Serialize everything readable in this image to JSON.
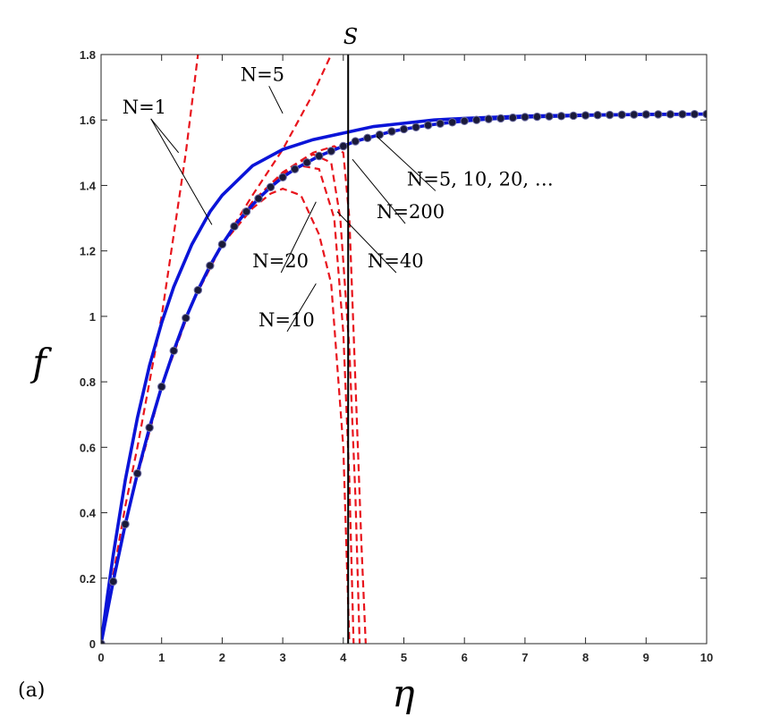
{
  "chart_data": {
    "type": "line",
    "panel_label": "(a)",
    "xlabel": "η",
    "ylabel": "f",
    "xlim": [
      0,
      10
    ],
    "ylim": [
      0,
      1.8
    ],
    "xticks": [
      "0",
      "1",
      "2",
      "3",
      "4",
      "5",
      "6",
      "7",
      "8",
      "9",
      "10"
    ],
    "yticks": [
      "0",
      "0.2",
      "0.4",
      "0.6",
      "0.8",
      "1",
      "1.2",
      "1.4",
      "1.6",
      "1.8"
    ],
    "grid": false,
    "vline": {
      "x": 4.08,
      "label": "S",
      "color": "#000000"
    },
    "colors": {
      "truncated": "#e8141c",
      "converged": "#0a14d8",
      "marker_fill": "#1a1a3a",
      "axis": "#262626"
    },
    "series": [
      {
        "name": "N=1",
        "style": "dashed",
        "color": "#e8141c",
        "x": [
          0,
          0.2,
          0.4,
          0.6,
          0.8,
          1.0,
          1.2,
          1.4,
          1.6
        ],
        "y": [
          0,
          0.21,
          0.42,
          0.6,
          0.8,
          1.0,
          1.25,
          1.5,
          1.8
        ]
      },
      {
        "name": "N=5",
        "style": "dashed",
        "color": "#e8141c",
        "x": [
          0,
          0.2,
          0.5,
          1.0,
          1.5,
          2.0,
          2.5,
          3.0,
          3.5,
          3.8
        ],
        "y": [
          0,
          0.19,
          0.445,
          0.785,
          1.04,
          1.22,
          1.37,
          1.51,
          1.68,
          1.8
        ]
      },
      {
        "name": "N=10",
        "style": "dashed",
        "color": "#e8141c",
        "x": [
          0,
          0.2,
          0.5,
          1.0,
          1.5,
          2.0,
          2.5,
          2.8,
          3.0,
          3.3,
          3.6,
          3.8,
          4.0,
          4.1
        ],
        "y": [
          0,
          0.19,
          0.445,
          0.785,
          1.04,
          1.22,
          1.33,
          1.375,
          1.39,
          1.37,
          1.25,
          1.1,
          0.6,
          0
        ]
      },
      {
        "name": "N=20",
        "style": "dashed",
        "color": "#e8141c",
        "x": [
          0,
          0.2,
          0.5,
          1.0,
          1.5,
          2.0,
          2.5,
          3.0,
          3.3,
          3.6,
          3.85,
          4.0,
          4.1,
          4.17
        ],
        "y": [
          0,
          0.19,
          0.445,
          0.785,
          1.04,
          1.22,
          1.35,
          1.435,
          1.46,
          1.45,
          1.3,
          0.95,
          0.5,
          0
        ]
      },
      {
        "name": "N=40",
        "style": "dashed",
        "color": "#e8141c",
        "x": [
          0,
          0.2,
          0.5,
          1.0,
          1.5,
          2.0,
          2.5,
          3.0,
          3.5,
          3.8,
          3.95,
          4.1,
          4.2,
          4.27
        ],
        "y": [
          0,
          0.19,
          0.445,
          0.785,
          1.04,
          1.22,
          1.35,
          1.44,
          1.495,
          1.47,
          1.3,
          0.9,
          0.45,
          0
        ]
      },
      {
        "name": "N=200",
        "style": "dashed",
        "color": "#e8141c",
        "x": [
          0,
          0.2,
          0.5,
          1.0,
          1.5,
          2.0,
          2.5,
          3.0,
          3.5,
          3.85,
          4.0,
          4.1,
          4.2,
          4.3,
          4.37
        ],
        "y": [
          0,
          0.19,
          0.445,
          0.785,
          1.04,
          1.22,
          1.35,
          1.44,
          1.5,
          1.52,
          1.5,
          1.3,
          0.8,
          0.3,
          0
        ]
      },
      {
        "name": "N=1",
        "style": "solid",
        "color": "#0a14d8",
        "x": [
          0,
          0.1,
          0.2,
          0.4,
          0.6,
          0.8,
          1.0,
          1.2,
          1.5,
          1.8,
          2.0,
          2.5,
          3.0,
          3.5,
          4.0,
          4.5,
          5.0,
          5.5,
          6.0,
          7.0,
          8.0,
          9.0,
          10.0
        ],
        "y": [
          0,
          0.14,
          0.27,
          0.5,
          0.69,
          0.85,
          0.98,
          1.09,
          1.22,
          1.32,
          1.37,
          1.46,
          1.51,
          1.54,
          1.56,
          1.58,
          1.59,
          1.6,
          1.605,
          1.612,
          1.615,
          1.617,
          1.618
        ]
      },
      {
        "name": "N=5, 10, 20, ...",
        "style": "solid-markers",
        "color": "#0a14d8",
        "x": [
          0,
          0.2,
          0.4,
          0.6,
          0.8,
          1.0,
          1.2,
          1.4,
          1.6,
          1.8,
          2.0,
          2.2,
          2.4,
          2.6,
          2.8,
          3.0,
          3.2,
          3.4,
          3.6,
          3.8,
          4.0,
          4.2,
          4.4,
          4.6,
          4.8,
          5.0,
          5.2,
          5.4,
          5.6,
          5.8,
          6.0,
          6.2,
          6.4,
          6.6,
          6.8,
          7.0,
          7.2,
          7.4,
          7.6,
          7.8,
          8.0,
          8.2,
          8.4,
          8.6,
          8.8,
          9.0,
          9.2,
          9.4,
          9.6,
          9.8,
          10.0
        ],
        "y": [
          0,
          0.19,
          0.365,
          0.52,
          0.66,
          0.785,
          0.895,
          0.995,
          1.08,
          1.155,
          1.22,
          1.275,
          1.32,
          1.36,
          1.395,
          1.425,
          1.45,
          1.47,
          1.49,
          1.505,
          1.52,
          1.535,
          1.545,
          1.555,
          1.565,
          1.572,
          1.578,
          1.584,
          1.589,
          1.593,
          1.597,
          1.6,
          1.603,
          1.605,
          1.607,
          1.609,
          1.61,
          1.611,
          1.612,
          1.613,
          1.614,
          1.615,
          1.6155,
          1.616,
          1.6165,
          1.617,
          1.6172,
          1.6174,
          1.6176,
          1.6178,
          1.618
        ]
      }
    ],
    "annotations": [
      {
        "text": "N=1",
        "target": [
          [
            1.28,
            1.5
          ],
          [
            1.83,
            1.28
          ]
        ],
        "text_pos": [
          0.35,
          1.62
        ]
      },
      {
        "text": "N=5",
        "target": [
          [
            3.0,
            1.62
          ]
        ],
        "text_pos": [
          2.3,
          1.72
        ]
      },
      {
        "text": "N=5, 10, 20, …",
        "target": [
          [
            4.55,
            1.55
          ]
        ],
        "text_pos": [
          5.05,
          1.4
        ]
      },
      {
        "text": "N=200",
        "target": [
          [
            4.15,
            1.48
          ]
        ],
        "text_pos": [
          4.55,
          1.3
        ]
      },
      {
        "text": "N=20",
        "target": [
          [
            3.55,
            1.35
          ]
        ],
        "text_pos": [
          2.5,
          1.15
        ]
      },
      {
        "text": "N=40",
        "target": [
          [
            3.9,
            1.32
          ]
        ],
        "text_pos": [
          4.4,
          1.15
        ]
      },
      {
        "text": "N=10",
        "target": [
          [
            3.55,
            1.1
          ]
        ],
        "text_pos": [
          2.6,
          0.97
        ]
      }
    ]
  }
}
